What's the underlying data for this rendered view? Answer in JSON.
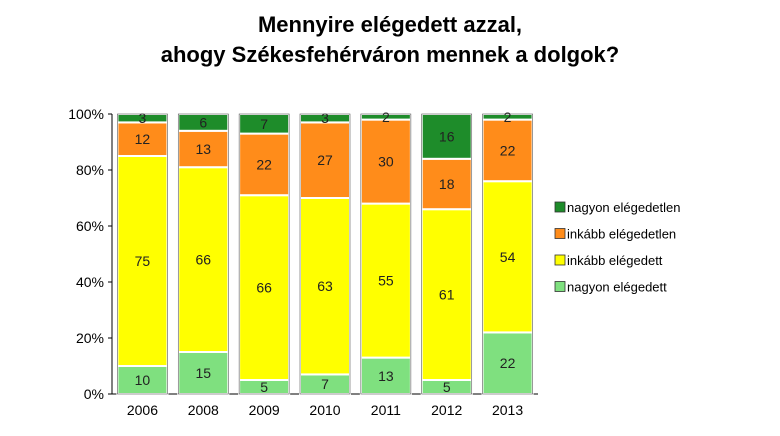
{
  "chart_data": {
    "type": "bar",
    "stacked": true,
    "title": [
      "Mennyire elégedett azzal,",
      "ahogy Székesfehérváron mennek a dolgok?"
    ],
    "categories": [
      "2006",
      "2008",
      "2009",
      "2010",
      "2011",
      "2012",
      "2013"
    ],
    "ylim": [
      0,
      100
    ],
    "y_ticks": [
      "0%",
      "20%",
      "40%",
      "60%",
      "80%",
      "100%"
    ],
    "grid": false,
    "legend_position": "right",
    "series": [
      {
        "name": "nagyon elégedett",
        "color": "#7fe07f",
        "values": [
          10,
          15,
          5,
          7,
          13,
          5,
          22
        ],
        "labels": [
          "10",
          "15",
          "5",
          "7",
          "13",
          "5",
          "22"
        ]
      },
      {
        "name": "inkább elégedett",
        "color": "#ffff00",
        "values": [
          75,
          66,
          66,
          63,
          55,
          61,
          54
        ],
        "labels": [
          "75",
          "66",
          "66",
          "63",
          "55",
          "61",
          "54"
        ]
      },
      {
        "name": "inkább elégedetlen",
        "color": "#ff8c1a",
        "values": [
          12,
          13,
          22,
          27,
          30,
          18,
          22
        ],
        "labels": [
          "12",
          "13",
          "22",
          "27",
          "30",
          "18",
          "22"
        ]
      },
      {
        "name": "nagyon elégedetlen",
        "color": "#1e8c2a",
        "values": [
          3,
          6,
          7,
          3,
          2,
          16,
          2
        ],
        "labels": [
          "3",
          "6",
          "7",
          "3",
          "2",
          "16",
          "2"
        ]
      }
    ],
    "legend_order": [
      "nagyon elégedetlen",
      "inkább elégedetlen",
      "inkább elégedett",
      "nagyon elégedett"
    ]
  }
}
